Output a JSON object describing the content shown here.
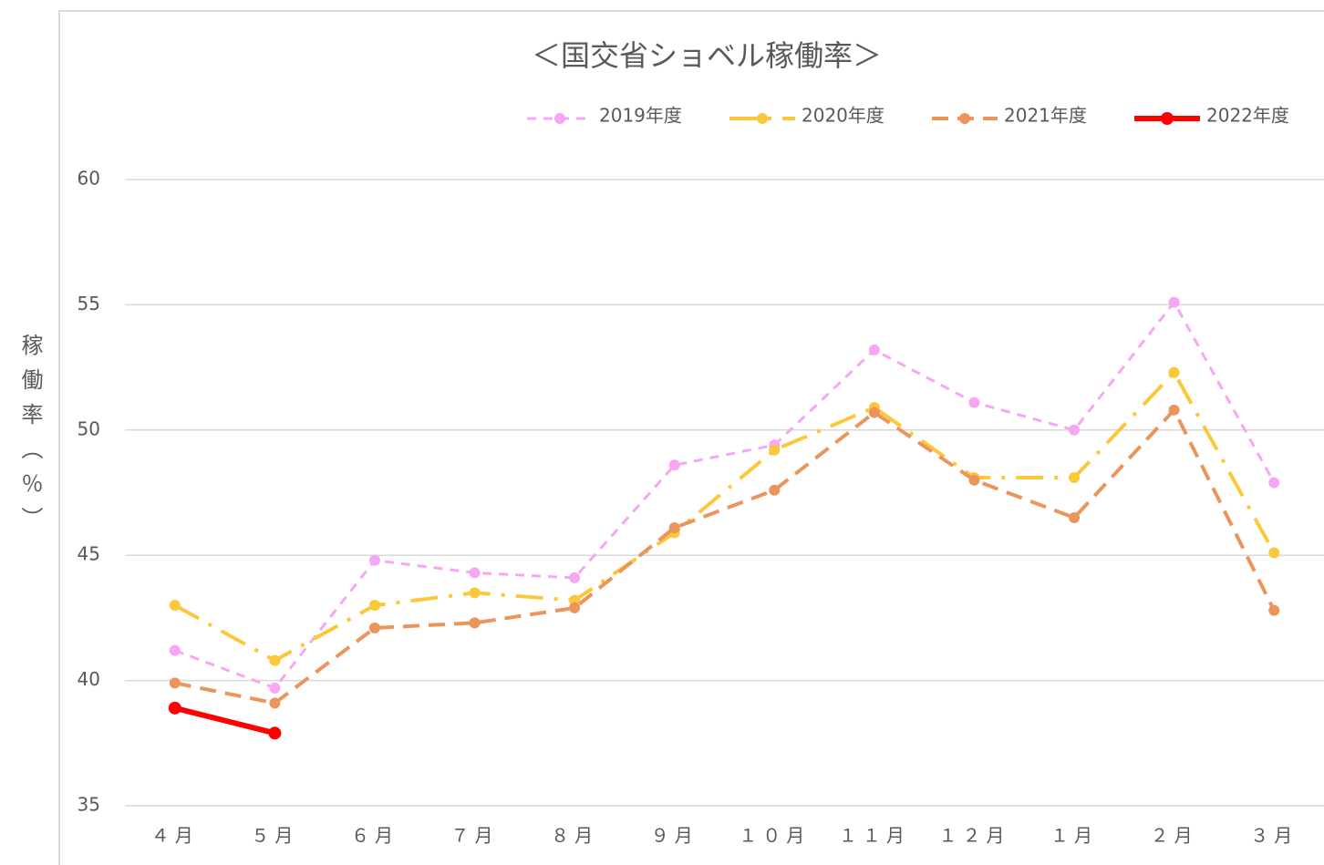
{
  "chart_data": {
    "type": "line",
    "title": "＜国交省ショベル稼働率＞",
    "y_label": "稼働率（％）",
    "categories": [
      "４月",
      "５月",
      "６月",
      "７月",
      "８月",
      "９月",
      "１０月",
      "１１月",
      "１２月",
      "１月",
      "２月",
      "３月"
    ],
    "series": [
      {
        "name": "2019年度",
        "color": "#f7a6f3",
        "values": [
          41.2,
          39.7,
          44.8,
          44.3,
          44.1,
          48.6,
          49.4,
          53.2,
          51.1,
          50.0,
          55.1,
          47.9
        ]
      },
      {
        "name": "2020年度",
        "color": "#fbc83a",
        "values": [
          43.0,
          40.8,
          43.0,
          43.5,
          43.2,
          45.9,
          49.2,
          50.9,
          48.1,
          48.1,
          52.3,
          45.1
        ]
      },
      {
        "name": "2021年度",
        "color": "#eb955c",
        "values": [
          39.9,
          39.1,
          42.1,
          42.3,
          42.9,
          46.1,
          47.6,
          50.7,
          48.0,
          46.5,
          50.8,
          42.8
        ]
      },
      {
        "name": "2022年度",
        "color": "#ff0000",
        "values": [
          38.9,
          37.9,
          null,
          null,
          null,
          null,
          null,
          null,
          null,
          null,
          null,
          null
        ]
      }
    ],
    "ylim": [
      35,
      60
    ],
    "yticks": [
      35,
      40,
      45,
      50,
      55,
      60
    ],
    "grid": true,
    "legend": "top-right"
  }
}
